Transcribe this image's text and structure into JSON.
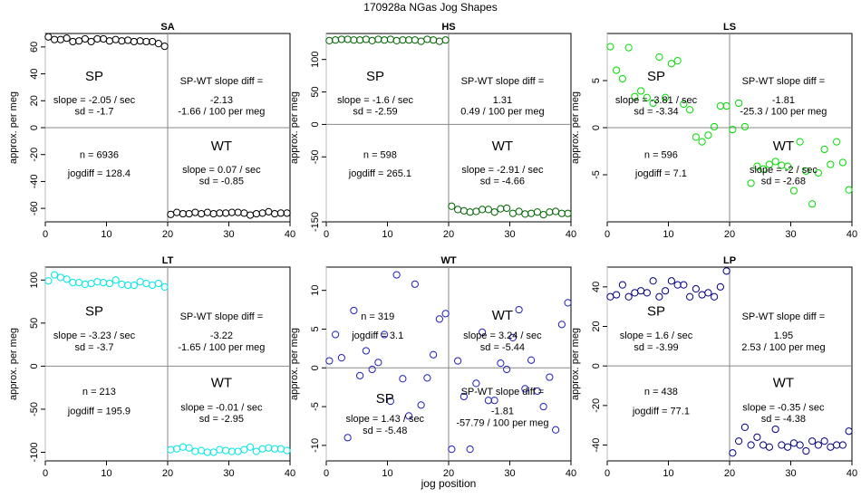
{
  "page": {
    "title": "170928a   NGas Jog Shapes",
    "xlabel": "jog position"
  },
  "chart_data": [
    {
      "type": "scatter",
      "title": "SA",
      "ylabel": "approx. per meg",
      "color": "#000000",
      "xlim": [
        0,
        40
      ],
      "ylim": [
        -70,
        70
      ],
      "xticks": [
        0,
        10,
        20,
        30,
        40
      ],
      "yticks": [
        -60,
        -40,
        -20,
        0,
        20,
        40,
        60
      ],
      "points": [
        [
          0.5,
          67.5
        ],
        [
          1.5,
          65.5
        ],
        [
          2.5,
          65.5
        ],
        [
          3.5,
          66.5
        ],
        [
          4.5,
          64
        ],
        [
          5.5,
          64.5
        ],
        [
          6.5,
          66
        ],
        [
          7.5,
          64
        ],
        [
          8.5,
          66
        ],
        [
          9.5,
          66
        ],
        [
          10.5,
          64.5
        ],
        [
          11.5,
          65.5
        ],
        [
          12.5,
          64.5
        ],
        [
          13.5,
          65
        ],
        [
          14.5,
          64
        ],
        [
          15.5,
          64.5
        ],
        [
          16.5,
          64
        ],
        [
          17.5,
          64
        ],
        [
          18.5,
          62.5
        ],
        [
          19.5,
          60.5
        ],
        [
          20.5,
          -64.5
        ],
        [
          21.5,
          -63
        ],
        [
          22.5,
          -64
        ],
        [
          23.5,
          -64
        ],
        [
          24.5,
          -63
        ],
        [
          25.5,
          -64
        ],
        [
          26.5,
          -63
        ],
        [
          27.5,
          -64
        ],
        [
          28.5,
          -63.5
        ],
        [
          29.5,
          -63.5
        ],
        [
          30.5,
          -63
        ],
        [
          31.5,
          -63
        ],
        [
          32.5,
          -63.5
        ],
        [
          33.5,
          -65
        ],
        [
          34.5,
          -64
        ],
        [
          35.5,
          -63.5
        ],
        [
          36.5,
          -62.5
        ],
        [
          37.5,
          -64
        ],
        [
          38.5,
          -63.5
        ],
        [
          39.5,
          -63.5
        ]
      ],
      "labels": {
        "sp": "SP",
        "sp_slope": "slope = -2.05 / sec",
        "sp_sd": "sd = -1.7",
        "diff_title": "SP-WT slope diff =",
        "diff_value": "-2.13",
        "diff_per": "-1.66 / 100 per meg",
        "n": "n = 6936",
        "jogdiff": "jogdiff = 128.4",
        "wt": "WT",
        "wt_slope": "slope = 0.07 / sec",
        "wt_sd": "sd = -0.85"
      }
    },
    {
      "type": "scatter",
      "title": "HS",
      "ylabel": "approx. per meg",
      "color": "#006400",
      "xlim": [
        0,
        40
      ],
      "ylim": [
        -150,
        140
      ],
      "xticks": [
        0,
        10,
        20,
        30,
        40
      ],
      "yticks": [
        -150,
        -50,
        0,
        50,
        100
      ],
      "points": [
        [
          0.5,
          129
        ],
        [
          1.5,
          130
        ],
        [
          2.5,
          131
        ],
        [
          3.5,
          131
        ],
        [
          4.5,
          130
        ],
        [
          5.5,
          130
        ],
        [
          6.5,
          131
        ],
        [
          7.5,
          129
        ],
        [
          8.5,
          131
        ],
        [
          9.5,
          130
        ],
        [
          10.5,
          131
        ],
        [
          11.5,
          129
        ],
        [
          12.5,
          130
        ],
        [
          13.5,
          130
        ],
        [
          14.5,
          130
        ],
        [
          15.5,
          128
        ],
        [
          16.5,
          131
        ],
        [
          17.5,
          130
        ],
        [
          18.5,
          128
        ],
        [
          19.5,
          130
        ],
        [
          20.5,
          -126
        ],
        [
          21.5,
          -131
        ],
        [
          22.5,
          -133
        ],
        [
          23.5,
          -135
        ],
        [
          24.5,
          -134
        ],
        [
          25.5,
          -131
        ],
        [
          26.5,
          -131
        ],
        [
          27.5,
          -135
        ],
        [
          28.5,
          -130
        ],
        [
          29.5,
          -129
        ],
        [
          30.5,
          -137
        ],
        [
          31.5,
          -134
        ],
        [
          32.5,
          -138
        ],
        [
          33.5,
          -137
        ],
        [
          34.5,
          -135
        ],
        [
          35.5,
          -139
        ],
        [
          36.5,
          -135
        ],
        [
          37.5,
          -134
        ],
        [
          38.5,
          -137
        ],
        [
          39.5,
          -137
        ]
      ],
      "labels": {
        "sp": "SP",
        "sp_slope": "slope = -1.6 / sec",
        "sp_sd": "sd = -2.59",
        "diff_title": "SP-WT slope diff =",
        "diff_value": "1.31",
        "diff_per": "0.49 / 100 per meg",
        "n": "n = 598",
        "jogdiff": "jogdiff = 265.1",
        "wt": "WT",
        "wt_slope": "slope = -2.91 / sec",
        "wt_sd": "sd = -4.66"
      }
    },
    {
      "type": "scatter",
      "title": "LS",
      "ylabel": "approx. per meg",
      "color": "#00dd00",
      "xlim": [
        0,
        40
      ],
      "ylim": [
        -10,
        10
      ],
      "xticks": [
        0,
        10,
        20,
        30,
        40
      ],
      "yticks": [
        -5,
        0,
        5
      ],
      "points": [
        [
          0.5,
          8.6
        ],
        [
          1.5,
          6.1
        ],
        [
          2.5,
          5.2
        ],
        [
          3.5,
          8.5
        ],
        [
          4.5,
          3.3
        ],
        [
          5.5,
          3.9
        ],
        [
          6.5,
          3.2
        ],
        [
          7.5,
          2.6
        ],
        [
          8.5,
          7.5
        ],
        [
          9.5,
          3.2
        ],
        [
          10.5,
          6.8
        ],
        [
          11.5,
          7.1
        ],
        [
          12.5,
          2.5
        ],
        [
          13.5,
          1.9
        ],
        [
          14.5,
          -1.0
        ],
        [
          15.5,
          -1.5
        ],
        [
          16.5,
          -0.8
        ],
        [
          17.5,
          0.1
        ],
        [
          18.5,
          2.3
        ],
        [
          19.5,
          2.3
        ],
        [
          20.5,
          -0.2
        ],
        [
          21.5,
          2.6
        ],
        [
          22.5,
          0.1
        ],
        [
          23.5,
          -5.9
        ],
        [
          24.5,
          -4.1
        ],
        [
          25.5,
          -4.4
        ],
        [
          26.5,
          -3.9
        ],
        [
          27.5,
          -3.6
        ],
        [
          28.5,
          -4.0
        ],
        [
          29.5,
          -4.1
        ],
        [
          30.5,
          -6.7
        ],
        [
          31.5,
          -1.5
        ],
        [
          32.5,
          -4.6
        ],
        [
          33.5,
          -8.1
        ],
        [
          34.5,
          -4.8
        ],
        [
          35.5,
          -2.3
        ],
        [
          36.5,
          -3.9
        ],
        [
          37.5,
          -1.5
        ],
        [
          38.5,
          -3.7
        ],
        [
          39.5,
          -6.6
        ]
      ],
      "labels": {
        "sp": "SP",
        "sp_slope": "slope = -3.81 / sec",
        "sp_sd": "sd = -3.34",
        "diff_title": "SP-WT slope diff =",
        "diff_value": "-1.81",
        "diff_per": "-25.3 / 100 per meg",
        "n": "n = 596",
        "jogdiff": "jogdiff = 7.1",
        "wt": "WT",
        "wt_slope": "slope = -2 / sec",
        "wt_sd": "sd = -2.68"
      }
    },
    {
      "type": "scatter",
      "title": "LT",
      "ylabel": "approx. per meg",
      "color": "#00e5e5",
      "xlim": [
        0,
        40
      ],
      "ylim": [
        -110,
        115
      ],
      "xticks": [
        0,
        10,
        20,
        30,
        40
      ],
      "yticks": [
        -100,
        -50,
        0,
        50,
        100
      ],
      "points": [
        [
          0.5,
          99
        ],
        [
          1.5,
          106
        ],
        [
          2.5,
          103
        ],
        [
          3.5,
          101
        ],
        [
          4.5,
          97
        ],
        [
          5.5,
          97
        ],
        [
          6.5,
          95
        ],
        [
          7.5,
          96
        ],
        [
          8.5,
          98
        ],
        [
          9.5,
          97
        ],
        [
          10.5,
          96
        ],
        [
          11.5,
          100
        ],
        [
          12.5,
          95
        ],
        [
          13.5,
          94
        ],
        [
          14.5,
          94
        ],
        [
          15.5,
          98
        ],
        [
          16.5,
          96
        ],
        [
          17.5,
          94
        ],
        [
          18.5,
          96
        ],
        [
          19.5,
          92
        ],
        [
          20.5,
          -97
        ],
        [
          21.5,
          -96
        ],
        [
          22.5,
          -94
        ],
        [
          23.5,
          -95
        ],
        [
          24.5,
          -99
        ],
        [
          25.5,
          -98
        ],
        [
          26.5,
          -100
        ],
        [
          27.5,
          -100
        ],
        [
          28.5,
          -97
        ],
        [
          29.5,
          -98
        ],
        [
          30.5,
          -99
        ],
        [
          31.5,
          -99
        ],
        [
          32.5,
          -97
        ],
        [
          33.5,
          -94
        ],
        [
          34.5,
          -99
        ],
        [
          35.5,
          -96
        ],
        [
          36.5,
          -95
        ],
        [
          37.5,
          -96
        ],
        [
          38.5,
          -96
        ],
        [
          39.5,
          -98
        ]
      ],
      "labels": {
        "sp": "SP",
        "sp_slope": "slope = -3.23 / sec",
        "sp_sd": "sd = -3.7",
        "diff_title": "SP-WT slope diff =",
        "diff_value": "-3.22",
        "diff_per": "-1.65 / 100 per meg",
        "n": "n = 213",
        "jogdiff": "jogdiff = 195.9",
        "wt": "WT",
        "wt_slope": "slope = -0.01 / sec",
        "wt_sd": "sd = -2.95"
      }
    },
    {
      "type": "scatter",
      "title": "WT",
      "ylabel": "approx. per meg",
      "color": "#1f1fbf",
      "xlim": [
        0,
        40
      ],
      "ylim": [
        -12,
        13
      ],
      "xticks": [
        0,
        10,
        20,
        30,
        40
      ],
      "yticks": [
        -10,
        -5,
        0,
        5,
        10
      ],
      "points": [
        [
          0.5,
          0.9
        ],
        [
          1.5,
          4.3
        ],
        [
          2.5,
          1.3
        ],
        [
          3.5,
          -9.0
        ],
        [
          4.5,
          7.4
        ],
        [
          5.5,
          -1.0
        ],
        [
          6.5,
          2.2
        ],
        [
          7.5,
          -0.2
        ],
        [
          8.5,
          0.7
        ],
        [
          9.5,
          4.3
        ],
        [
          10.5,
          -4.3
        ],
        [
          11.5,
          12.0
        ],
        [
          12.5,
          -1.4
        ],
        [
          13.5,
          -6.2
        ],
        [
          14.5,
          10.8
        ],
        [
          15.5,
          -4.8
        ],
        [
          16.5,
          -1.3
        ],
        [
          17.5,
          1.7
        ],
        [
          18.5,
          6.3
        ],
        [
          19.5,
          7.0
        ],
        [
          20.5,
          -10.5
        ],
        [
          21.5,
          0.9
        ],
        [
          22.5,
          -3.7
        ],
        [
          23.5,
          -10.5
        ],
        [
          24.5,
          -2.0
        ],
        [
          25.5,
          4.6
        ],
        [
          26.5,
          -4.2
        ],
        [
          27.5,
          -4.2
        ],
        [
          28.5,
          0.6
        ],
        [
          29.5,
          -0.2
        ],
        [
          30.5,
          3.9
        ],
        [
          31.5,
          7.5
        ],
        [
          32.5,
          -2.7
        ],
        [
          33.5,
          1.0
        ],
        [
          34.5,
          -3.0
        ],
        [
          35.5,
          -5.0
        ],
        [
          36.5,
          -1.2
        ],
        [
          37.5,
          -8.0
        ],
        [
          38.5,
          5.6
        ],
        [
          39.5,
          8.4
        ]
      ],
      "labels": {
        "n": "n = 319",
        "jogdiff": "jogdiff = 3.1",
        "wt": "WT",
        "wt_slope": "slope = 3.24 / sec",
        "wt_sd": "sd = -5.44",
        "sp": "SP",
        "sp_slope": "slope = 1.43 / sec",
        "sp_sd": "sd = -5.48",
        "diff_title": "SP-WT slope diff =",
        "diff_value": "-1.81",
        "diff_per": "-57.79 / 100 per meg"
      }
    },
    {
      "type": "scatter",
      "title": "LP",
      "ylabel": "approx. per meg",
      "color": "#000080",
      "xlim": [
        0,
        40
      ],
      "ylim": [
        -48,
        50
      ],
      "xticks": [
        0,
        10,
        20,
        30,
        40
      ],
      "yticks": [
        -40,
        -20,
        0,
        20,
        40
      ],
      "points": [
        [
          0.5,
          35
        ],
        [
          1.5,
          36
        ],
        [
          2.5,
          41
        ],
        [
          3.5,
          35
        ],
        [
          4.5,
          37
        ],
        [
          5.5,
          38
        ],
        [
          6.5,
          37
        ],
        [
          7.5,
          43
        ],
        [
          8.5,
          35
        ],
        [
          9.5,
          38
        ],
        [
          10.5,
          43
        ],
        [
          11.5,
          41
        ],
        [
          12.5,
          41
        ],
        [
          13.5,
          35
        ],
        [
          14.5,
          39
        ],
        [
          15.5,
          36
        ],
        [
          16.5,
          37
        ],
        [
          17.5,
          35
        ],
        [
          18.5,
          40
        ],
        [
          19.5,
          48
        ],
        [
          20.5,
          -44
        ],
        [
          21.5,
          -38
        ],
        [
          22.5,
          -31
        ],
        [
          23.5,
          -40
        ],
        [
          24.5,
          -36
        ],
        [
          25.5,
          -40
        ],
        [
          26.5,
          -41
        ],
        [
          27.5,
          -32
        ],
        [
          28.5,
          -40
        ],
        [
          29.5,
          -41
        ],
        [
          30.5,
          -39
        ],
        [
          31.5,
          -40
        ],
        [
          32.5,
          -43
        ],
        [
          33.5,
          -38
        ],
        [
          34.5,
          -40
        ],
        [
          35.5,
          -38
        ],
        [
          36.5,
          -41
        ],
        [
          37.5,
          -40
        ],
        [
          38.5,
          -40
        ],
        [
          39.5,
          -33
        ]
      ],
      "labels": {
        "sp": "SP",
        "sp_slope": "slope = 1.6 / sec",
        "sp_sd": "sd = -3.99",
        "diff_title": "SP-WT slope diff =",
        "diff_value": "1.95",
        "diff_per": "2.53 / 100 per meg",
        "n": "n = 438",
        "jogdiff": "jogdiff = 77.1",
        "wt": "WT",
        "wt_slope": "slope = -0.35 / sec",
        "wt_sd": "sd = -4.38"
      }
    }
  ]
}
